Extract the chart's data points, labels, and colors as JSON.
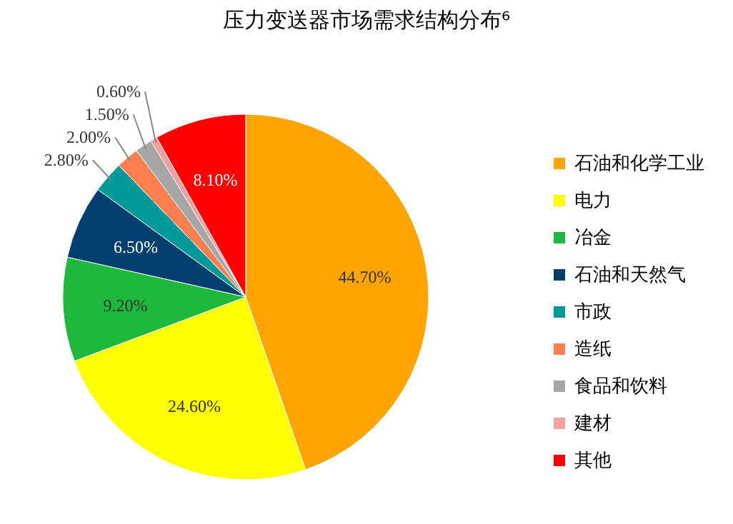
{
  "chart_data": {
    "type": "pie",
    "title": "压力变送器市场需求结构分布⁶",
    "categories": [
      "石油和化学工业",
      "电力",
      "冶金",
      "石油和天然气",
      "市政",
      "造纸",
      "食品和饮料",
      "建材",
      "其他"
    ],
    "values": [
      44.7,
      24.6,
      9.2,
      6.5,
      2.8,
      2.0,
      1.5,
      0.6,
      8.1
    ],
    "colors": [
      "#ffa500",
      "#ffff00",
      "#1db83c",
      "#003f6e",
      "#009999",
      "#ff7f50",
      "#a6a6a6",
      "#f4a0a0",
      "#ff0000"
    ],
    "value_labels": [
      "44.70%",
      "24.60%",
      "9.20%",
      "6.50%",
      "2.80%",
      "2.00%",
      "1.50%",
      "0.60%",
      "8.10%"
    ],
    "legend": "right"
  }
}
